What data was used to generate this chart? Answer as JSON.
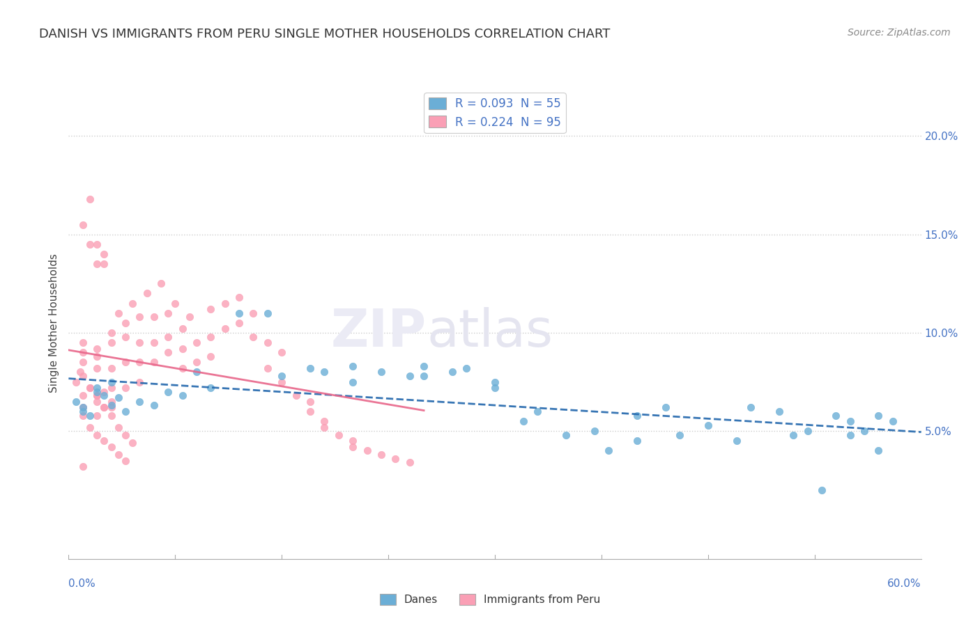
{
  "title": "DANISH VS IMMIGRANTS FROM PERU SINGLE MOTHER HOUSEHOLDS CORRELATION CHART",
  "source": "Source: ZipAtlas.com",
  "ylabel": "Single Mother Households",
  "ytick_vals": [
    0.05,
    0.1,
    0.15,
    0.2
  ],
  "ytick_labels": [
    "5.0%",
    "10.0%",
    "15.0%",
    "20.0%"
  ],
  "xlim": [
    0.0,
    0.6
  ],
  "ylim": [
    -0.015,
    0.225
  ],
  "legend1_label": "R = 0.093  N = 55",
  "legend2_label": "R = 0.224  N = 95",
  "danes_color": "#6baed6",
  "peru_color": "#fa9fb5",
  "danes_line_color": "#2166ac",
  "peru_line_color": "#e8668a",
  "background_color": "#ffffff",
  "danes_scatter_x": [
    0.005,
    0.01,
    0.01,
    0.015,
    0.02,
    0.02,
    0.025,
    0.03,
    0.03,
    0.035,
    0.04,
    0.05,
    0.06,
    0.07,
    0.08,
    0.09,
    0.1,
    0.12,
    0.14,
    0.15,
    0.17,
    0.18,
    0.2,
    0.2,
    0.22,
    0.24,
    0.25,
    0.25,
    0.27,
    0.28,
    0.3,
    0.3,
    0.32,
    0.33,
    0.35,
    0.37,
    0.38,
    0.4,
    0.4,
    0.42,
    0.43,
    0.45,
    0.47,
    0.48,
    0.5,
    0.51,
    0.52,
    0.53,
    0.54,
    0.55,
    0.55,
    0.56,
    0.57,
    0.57,
    0.58
  ],
  "danes_scatter_y": [
    0.065,
    0.06,
    0.062,
    0.058,
    0.07,
    0.072,
    0.068,
    0.075,
    0.063,
    0.067,
    0.06,
    0.065,
    0.063,
    0.07,
    0.068,
    0.08,
    0.072,
    0.11,
    0.11,
    0.078,
    0.082,
    0.08,
    0.083,
    0.075,
    0.08,
    0.078,
    0.083,
    0.078,
    0.08,
    0.082,
    0.072,
    0.075,
    0.055,
    0.06,
    0.048,
    0.05,
    0.04,
    0.045,
    0.058,
    0.062,
    0.048,
    0.053,
    0.045,
    0.062,
    0.06,
    0.048,
    0.05,
    0.02,
    0.058,
    0.055,
    0.048,
    0.05,
    0.04,
    0.058,
    0.055
  ],
  "peru_scatter_x": [
    0.005,
    0.008,
    0.01,
    0.01,
    0.01,
    0.01,
    0.01,
    0.01,
    0.015,
    0.02,
    0.02,
    0.02,
    0.02,
    0.02,
    0.025,
    0.03,
    0.03,
    0.03,
    0.03,
    0.03,
    0.035,
    0.04,
    0.04,
    0.04,
    0.04,
    0.045,
    0.05,
    0.05,
    0.05,
    0.05,
    0.055,
    0.06,
    0.06,
    0.06,
    0.065,
    0.07,
    0.07,
    0.07,
    0.075,
    0.08,
    0.08,
    0.08,
    0.085,
    0.09,
    0.09,
    0.1,
    0.1,
    0.1,
    0.11,
    0.11,
    0.12,
    0.12,
    0.13,
    0.13,
    0.14,
    0.14,
    0.15,
    0.15,
    0.16,
    0.17,
    0.17,
    0.18,
    0.18,
    0.19,
    0.2,
    0.2,
    0.21,
    0.22,
    0.23,
    0.24,
    0.025,
    0.01,
    0.015,
    0.02,
    0.025,
    0.03,
    0.02,
    0.015,
    0.02,
    0.025,
    0.01,
    0.015,
    0.02,
    0.025,
    0.03,
    0.035,
    0.04,
    0.01,
    0.015,
    0.02,
    0.025,
    0.03,
    0.035,
    0.04,
    0.045
  ],
  "peru_scatter_y": [
    0.075,
    0.08,
    0.068,
    0.062,
    0.09,
    0.095,
    0.085,
    0.078,
    0.072,
    0.068,
    0.065,
    0.092,
    0.088,
    0.082,
    0.07,
    0.1,
    0.095,
    0.082,
    0.072,
    0.065,
    0.11,
    0.105,
    0.098,
    0.085,
    0.072,
    0.115,
    0.108,
    0.095,
    0.085,
    0.075,
    0.12,
    0.108,
    0.095,
    0.085,
    0.125,
    0.11,
    0.098,
    0.09,
    0.115,
    0.102,
    0.092,
    0.082,
    0.108,
    0.095,
    0.085,
    0.112,
    0.098,
    0.088,
    0.115,
    0.102,
    0.118,
    0.105,
    0.11,
    0.098,
    0.095,
    0.082,
    0.09,
    0.075,
    0.068,
    0.065,
    0.06,
    0.055,
    0.052,
    0.048,
    0.045,
    0.042,
    0.04,
    0.038,
    0.036,
    0.034,
    0.14,
    0.155,
    0.168,
    0.145,
    0.135,
    0.062,
    0.058,
    0.145,
    0.135,
    0.062,
    0.058,
    0.052,
    0.048,
    0.045,
    0.042,
    0.038,
    0.035,
    0.032,
    0.072,
    0.068,
    0.062,
    0.058,
    0.052,
    0.048,
    0.044
  ]
}
